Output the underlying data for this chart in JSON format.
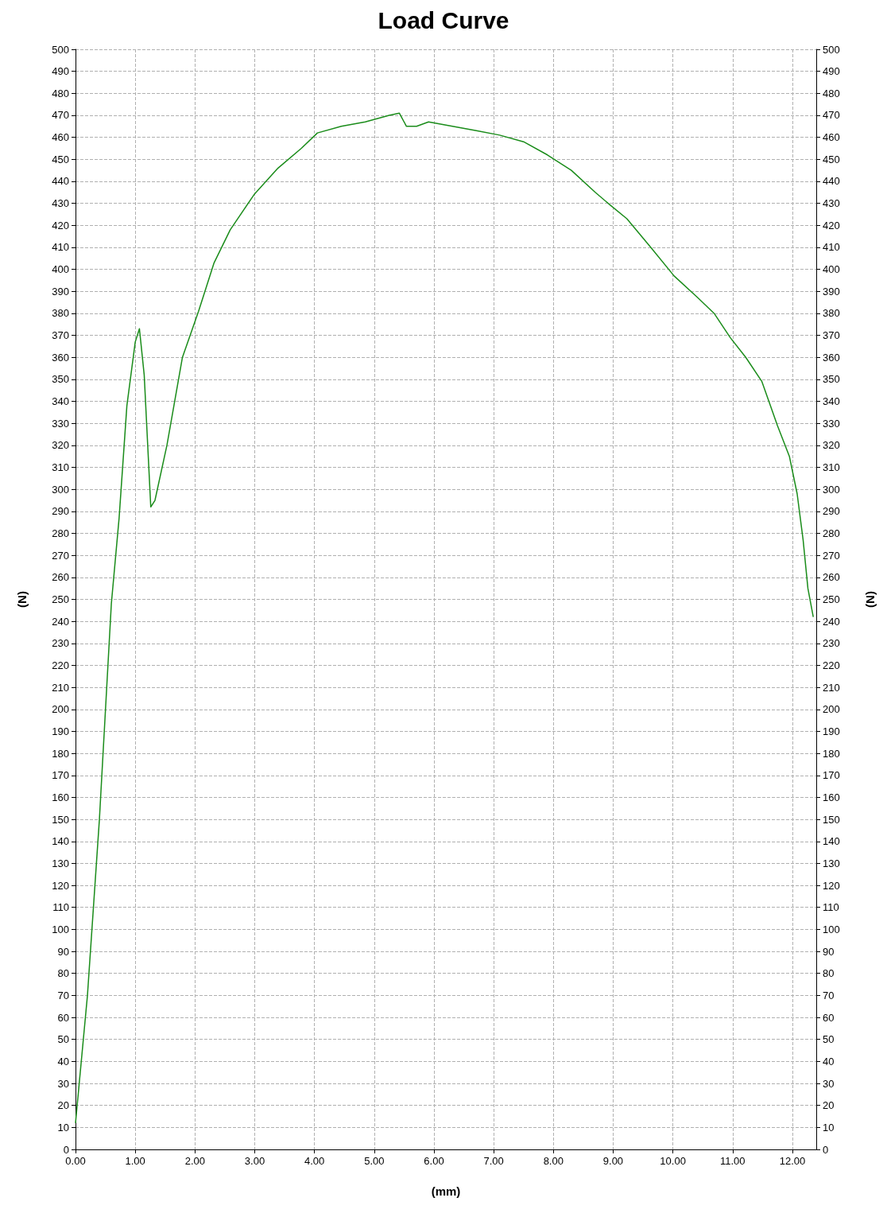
{
  "chart_data": {
    "type": "line",
    "title": "Load Curve",
    "xlabel": "(mm)",
    "ylabel": "(N)",
    "y2label": "(N)",
    "grid": true,
    "marker": "none",
    "line_style": "solid",
    "xlim": [
      0,
      12.4
    ],
    "xticks": [
      {
        "value": 0,
        "label": "0.00"
      },
      {
        "value": 1,
        "label": "1.00"
      },
      {
        "value": 2,
        "label": "2.00"
      },
      {
        "value": 3,
        "label": "3.00"
      },
      {
        "value": 4,
        "label": "4.00"
      },
      {
        "value": 5,
        "label": "5.00"
      },
      {
        "value": 6,
        "label": "6.00"
      },
      {
        "value": 7,
        "label": "7.00"
      },
      {
        "value": 8,
        "label": "8.00"
      },
      {
        "value": 9,
        "label": "9.00"
      },
      {
        "value": 10,
        "label": "10.00"
      },
      {
        "value": 11,
        "label": "11.00"
      },
      {
        "value": 12,
        "label": "12.00"
      }
    ],
    "ylim": [
      0,
      500
    ],
    "yticks": [
      0,
      10,
      20,
      30,
      40,
      50,
      60,
      70,
      80,
      90,
      100,
      110,
      120,
      130,
      140,
      150,
      160,
      170,
      180,
      190,
      200,
      210,
      220,
      230,
      240,
      250,
      260,
      270,
      280,
      290,
      300,
      310,
      320,
      330,
      340,
      350,
      360,
      370,
      380,
      390,
      400,
      410,
      420,
      430,
      440,
      450,
      460,
      470,
      480,
      490,
      500
    ],
    "y2lim": [
      0,
      500
    ],
    "y2ticks": [
      0,
      10,
      20,
      30,
      40,
      50,
      60,
      70,
      80,
      90,
      100,
      110,
      120,
      130,
      140,
      150,
      160,
      170,
      180,
      190,
      200,
      210,
      220,
      230,
      240,
      250,
      260,
      270,
      280,
      290,
      300,
      310,
      320,
      330,
      340,
      350,
      360,
      370,
      380,
      390,
      400,
      410,
      420,
      430,
      440,
      450,
      460,
      470,
      480,
      490,
      500
    ],
    "series": [
      {
        "color": "#1a8c1a",
        "x": [
          0,
          0.2,
          0.4,
          0.6,
          0.73,
          0.86,
          1.0,
          1.07,
          1.15,
          1.26,
          1.33,
          1.53,
          1.79,
          2.06,
          2.32,
          2.59,
          2.99,
          3.39,
          3.78,
          4.05,
          4.45,
          4.85,
          5.25,
          5.42,
          5.54,
          5.71,
          5.91,
          6.31,
          6.71,
          7.1,
          7.5,
          7.9,
          8.3,
          8.7,
          8.96,
          9.23,
          9.63,
          10.02,
          10.42,
          10.69,
          10.96,
          11.22,
          11.49,
          11.75,
          11.95,
          12.08,
          12.18,
          12.26,
          12.35
        ],
        "values": [
          12,
          70,
          150,
          248,
          287,
          338,
          367,
          373,
          352,
          292,
          295,
          320,
          360,
          381,
          403,
          418,
          434,
          446,
          455,
          462,
          465,
          467,
          470,
          471,
          465,
          465,
          467,
          465,
          463,
          461,
          458,
          452,
          445,
          435,
          429,
          423,
          410,
          397,
          387,
          380,
          369,
          360,
          349,
          329,
          315,
          298,
          277,
          255,
          242
        ]
      }
    ]
  }
}
